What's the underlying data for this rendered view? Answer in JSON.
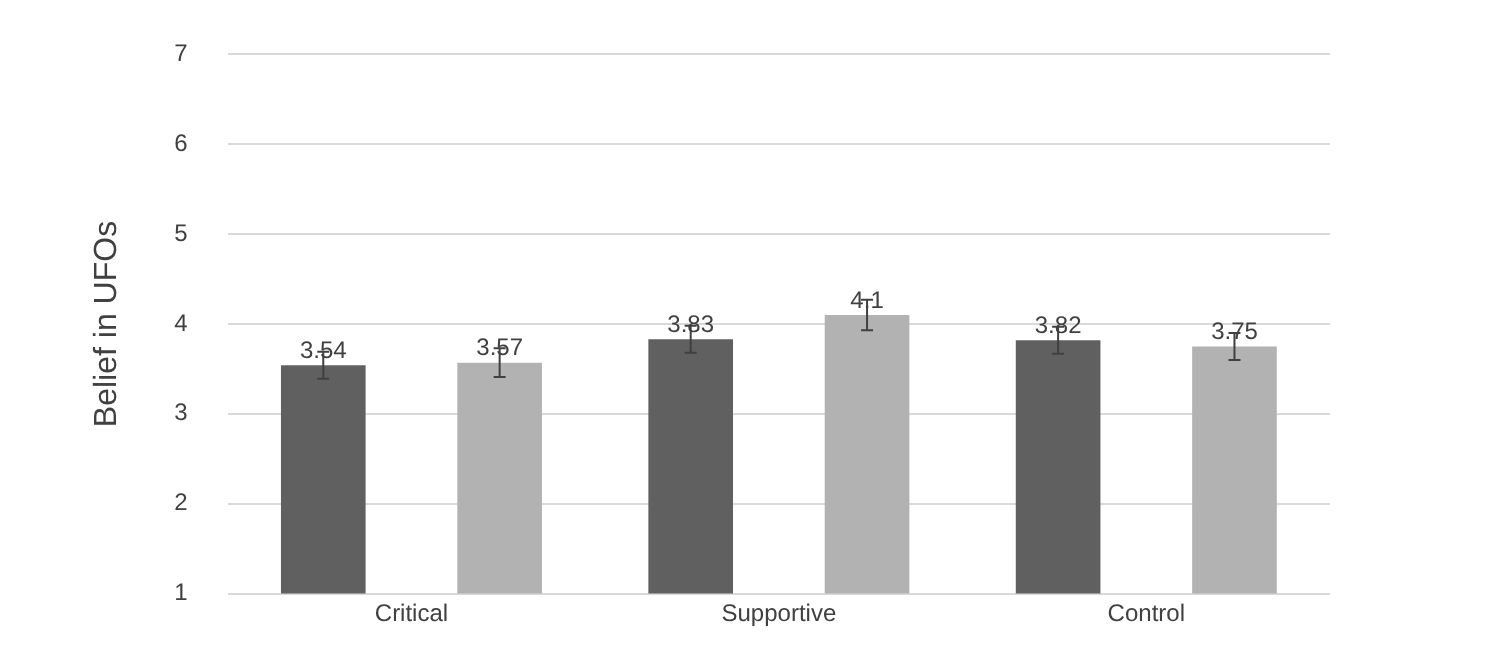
{
  "chart_data": {
    "type": "bar",
    "ylabel": "Belief in UFOs",
    "categories": [
      "Critical",
      "Supportive",
      "Control"
    ],
    "series": [
      {
        "color": "#606060",
        "values": [
          3.54,
          3.83,
          3.82
        ],
        "errors": [
          0.15,
          0.15,
          0.15
        ]
      },
      {
        "color": "#b2b2b2",
        "values": [
          3.57,
          4.1,
          3.75
        ],
        "errors": [
          0.16,
          0.17,
          0.15
        ]
      }
    ],
    "ylim": [
      1,
      7
    ],
    "yticks": [
      1,
      2,
      3,
      4,
      5,
      6,
      7
    ],
    "grid": "y",
    "data_labels": true
  }
}
